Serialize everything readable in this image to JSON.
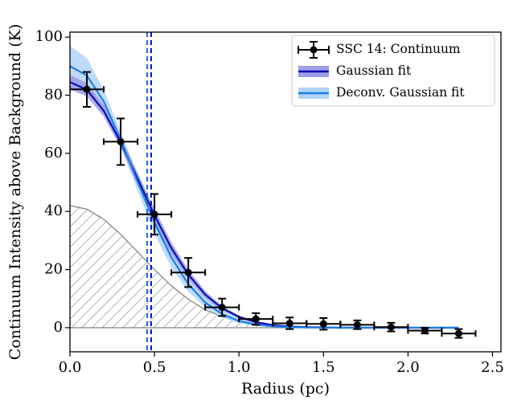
{
  "chart_data": {
    "type": "line",
    "xlabel": "Radius (pc)",
    "ylabel": "Continuum Intensity above Background (K)",
    "xlim": [
      0,
      2.55
    ],
    "ylim": [
      -8.3,
      101.7
    ],
    "xticks": [
      {
        "value": 0,
        "label": "0.0"
      },
      {
        "value": 0.5,
        "label": "0.5"
      },
      {
        "value": 1,
        "label": "1.0"
      },
      {
        "value": 1.5,
        "label": "1.5"
      },
      {
        "value": 2,
        "label": "2.0"
      },
      {
        "value": 2.5,
        "label": "2.5"
      }
    ],
    "yticks": [
      0,
      20,
      40,
      60,
      80,
      100
    ],
    "legend": "upper right",
    "errorbar": {
      "name": "SSC 14: Continuum",
      "color": "#000000",
      "x": [
        0.1,
        0.3,
        0.5,
        0.7,
        0.9,
        1.1,
        1.3,
        1.5,
        1.7,
        1.9,
        2.1,
        2.3
      ],
      "y": [
        82,
        64,
        39,
        19,
        7,
        3,
        1.5,
        1.3,
        1.0,
        0.2,
        -1,
        -2
      ],
      "xerr": [
        0.1,
        0.1,
        0.1,
        0.1,
        0.1,
        0.1,
        0.1,
        0.1,
        0.1,
        0.1,
        0.1,
        0.1
      ],
      "yerr": [
        6,
        8,
        7,
        5,
        3,
        2,
        2,
        2,
        1.5,
        1.5,
        1,
        1.5
      ]
    },
    "series": [
      {
        "name": "Gaussian fit",
        "color": "#0c0cb4",
        "band_color": "#9c9ce8",
        "x": [
          0,
          0.1,
          0.2,
          0.3,
          0.4,
          0.5,
          0.6,
          0.7,
          0.8,
          0.9,
          1.0,
          1.1,
          1.2,
          1.3,
          1.4,
          1.5,
          1.6,
          1.7,
          1.8,
          1.9,
          2.0,
          2.1,
          2.2,
          2.3
        ],
        "y": [
          84.5,
          81.9,
          74.6,
          63.8,
          51.3,
          38.7,
          27.4,
          18.3,
          11.4,
          6.7,
          3.7,
          1.9,
          0.9,
          0.4,
          0.2,
          0.1,
          0,
          0,
          0,
          0,
          0,
          0,
          0,
          0
        ],
        "band_x": [
          0,
          0.1,
          0.2,
          0.3,
          0.4,
          0.5,
          0.6,
          0.7,
          0.8,
          0.9,
          1.0,
          1.1,
          1.2
        ],
        "band_lower": [
          82,
          79.6,
          72.6,
          62,
          49.3,
          36.5,
          25.4,
          16.7,
          10.2,
          5.9,
          3.2,
          1.5,
          0.6
        ],
        "band_upper": [
          87,
          84.2,
          76.6,
          65.6,
          53.3,
          40.9,
          29.4,
          19.9,
          12.6,
          7.5,
          4.2,
          2.3,
          1.2
        ]
      },
      {
        "name": "Deconv. Gaussian fit",
        "color": "#1a7fe8",
        "band_color": "#b3d3f7",
        "x": [
          0,
          0.1,
          0.2,
          0.3,
          0.4,
          0.5,
          0.6,
          0.7,
          0.8,
          0.9,
          1.0,
          1.1,
          1.2,
          1.3,
          1.4,
          1.5,
          1.6,
          1.7,
          1.8,
          1.9,
          2.0,
          2.1,
          2.2,
          2.3
        ],
        "y": [
          90,
          86.8,
          77.8,
          64.8,
          50.2,
          36.2,
          24.2,
          15.0,
          8.7,
          4.7,
          2.3,
          1.1,
          0.5,
          0.2,
          0.1,
          0,
          0,
          0,
          0,
          0,
          0,
          0,
          0,
          0
        ],
        "band_x": [
          0,
          0.1,
          0.2,
          0.3,
          0.4,
          0.5,
          0.6,
          0.7,
          0.8,
          0.9,
          1.0,
          1.1,
          1.2
        ],
        "band_lower": [
          83,
          80.8,
          73.8,
          62.3,
          47.2,
          32.2,
          20.7,
          12.5,
          6.9,
          3.5,
          1.5,
          0.6,
          0.2
        ],
        "band_upper": [
          97,
          92.8,
          81.8,
          67.3,
          53.2,
          40.2,
          27.7,
          17.5,
          10.5,
          5.9,
          3.1,
          1.6,
          0.8
        ]
      }
    ],
    "beam": {
      "color": "#808080",
      "x": [
        0,
        0.1,
        0.2,
        0.3,
        0.4,
        0.5,
        0.6,
        0.7,
        0.8,
        0.9,
        1.0,
        1.1,
        1.2,
        1.3,
        1.4,
        1.5
      ],
      "y": [
        42,
        40.8,
        37.3,
        32.1,
        26.1,
        20.0,
        14.4,
        9.8,
        6.2,
        3.8,
        2.1,
        1.1,
        0.6,
        0.2,
        0.1,
        0
      ]
    },
    "vlines": [
      {
        "x": 0.457,
        "color": "#1b6fa8"
      },
      {
        "x": 0.48,
        "color": "#0000e0"
      }
    ]
  }
}
